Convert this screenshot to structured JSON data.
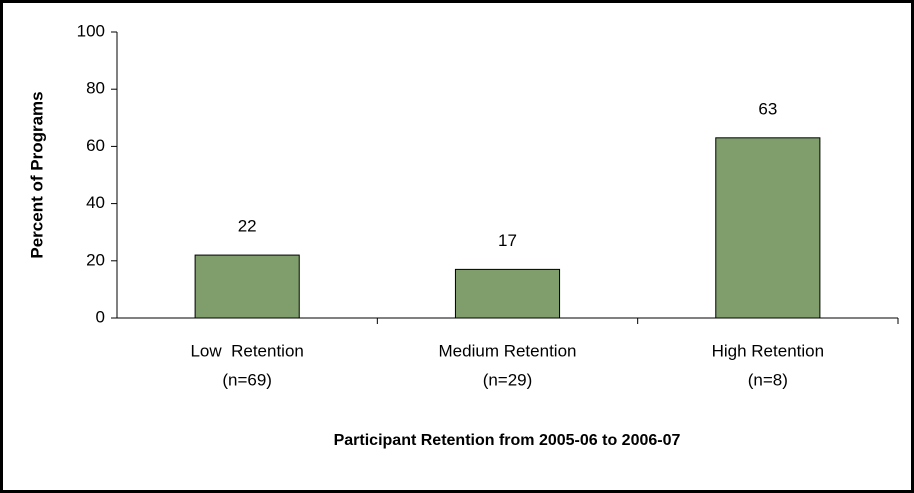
{
  "chart_data": {
    "type": "bar",
    "y_axis_label": "Percent of Programs",
    "x_axis_label": "Participant Retention from 2005-06 to 2006-07",
    "categories": [
      [
        "Low  Retention",
        "(n=69)"
      ],
      [
        "Medium Retention",
        "(n=29)"
      ],
      [
        "High Retention",
        "(n=8)"
      ]
    ],
    "values": [
      22,
      17,
      63
    ],
    "color": "#7f9e6c",
    "ylim": [
      0,
      100
    ],
    "yticks": [
      0,
      20,
      40,
      60,
      80,
      100
    ],
    "grid": false
  }
}
